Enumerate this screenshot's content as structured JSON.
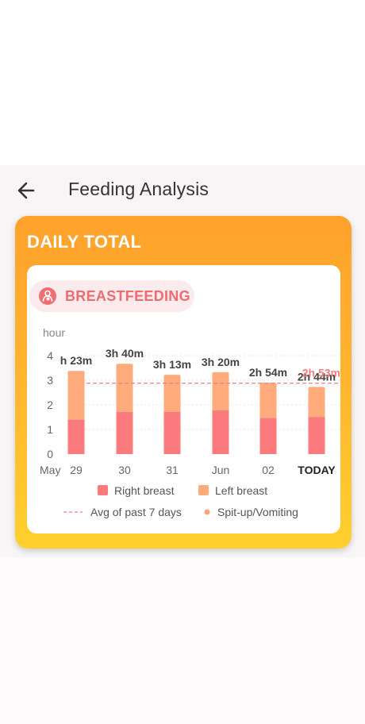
{
  "header": {
    "back_icon": "arrow-left-icon",
    "title": "Feeding Analysis"
  },
  "card": {
    "title": "DAILY TOTAL",
    "category_icon": "breastfeeding-icon",
    "category_label": "BREASTFEEDING"
  },
  "colors": {
    "right_breast": "#fb7a7d",
    "left_breast": "#ffab7c",
    "average_line": "#f07e80",
    "spitup": "#f6a47b",
    "accent_gradient_top": "#ffa12c",
    "accent_gradient_bottom": "#ffd02e"
  },
  "chart_data": {
    "type": "bar",
    "stacked": true,
    "ylabel": "hour",
    "ylim": [
      0,
      4
    ],
    "yticks": [
      "0",
      "1",
      "2",
      "3",
      "4"
    ],
    "x_prefix": "May",
    "categories": [
      "29",
      "30",
      "31",
      "Jun",
      "02",
      "TODAY"
    ],
    "series": [
      {
        "name": "Right breast",
        "values": [
          1.4,
          1.72,
          1.72,
          1.78,
          1.47,
          1.5
        ]
      },
      {
        "name": "Left breast",
        "values": [
          1.98,
          1.95,
          1.5,
          1.55,
          1.43,
          1.23
        ]
      }
    ],
    "total_labels": [
      "h 23m",
      "3h 40m",
      "3h 13m",
      "3h 20m",
      "2h 54m",
      "2h 44m"
    ],
    "average": {
      "label": "2h 53m",
      "value": 2.88
    },
    "legend": [
      "Right breast",
      "Left breast",
      "Avg of past 7 days",
      "Spit-up/Vomiting"
    ],
    "grid": true
  }
}
